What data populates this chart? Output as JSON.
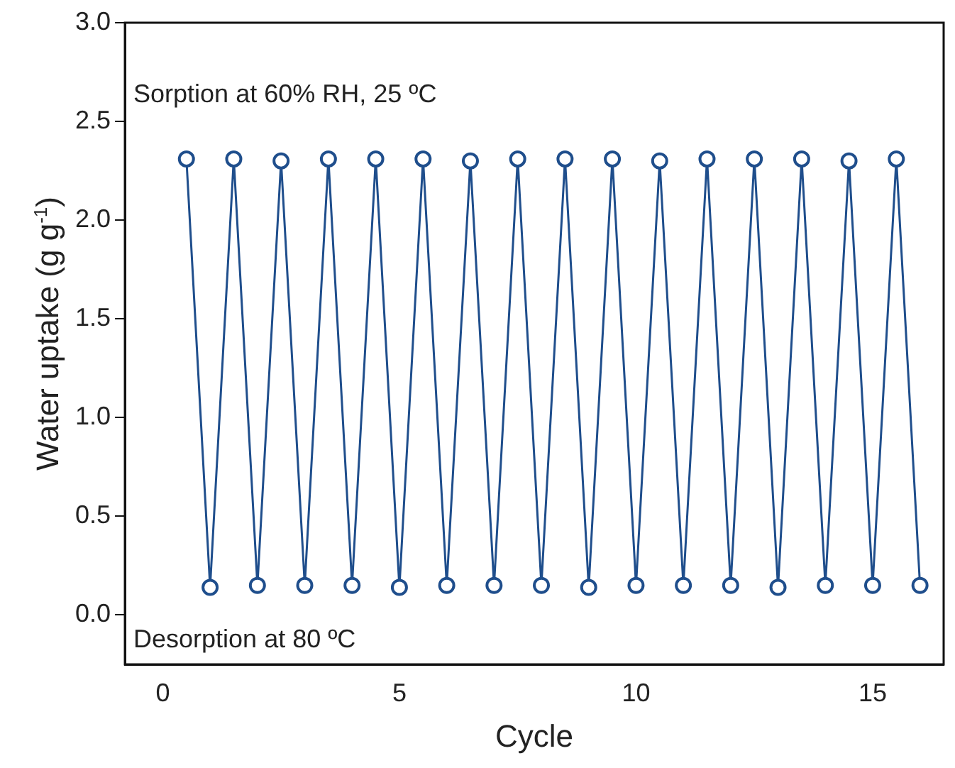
{
  "chart_data": {
    "type": "line",
    "xlabel": "Cycle",
    "ylabel": "Water uptake (g g$^{-1}$)",
    "x": [
      0.5,
      1,
      1.5,
      2,
      2.5,
      3,
      3.5,
      4,
      4.5,
      5,
      5.5,
      6,
      6.5,
      7,
      7.5,
      8,
      8.5,
      9,
      9.5,
      10,
      10.5,
      11,
      11.5,
      12,
      12.5,
      13,
      13.5,
      14,
      14.5,
      15,
      15.5,
      16
    ],
    "series": [
      {
        "color": "#1f4e8c",
        "values": [
          2.31,
          0.14,
          2.31,
          0.15,
          2.3,
          0.15,
          2.31,
          0.15,
          2.31,
          0.14,
          2.31,
          0.15,
          2.3,
          0.15,
          2.31,
          0.15,
          2.31,
          0.14,
          2.31,
          0.15,
          2.3,
          0.15,
          2.31,
          0.15,
          2.31,
          0.14,
          2.31,
          0.15,
          2.3,
          0.15,
          2.31,
          0.15
        ]
      }
    ],
    "xlim": [
      -0.8,
      16.5
    ],
    "xticks": [
      0,
      5,
      10,
      15
    ],
    "ylim": [
      -0.25,
      3.0
    ],
    "yticks": [
      {
        "value": 0,
        "label": "0.0"
      },
      {
        "value": 0.5,
        "label": "0.5"
      },
      {
        "value": 1,
        "label": "1.0"
      },
      {
        "value": 1.5,
        "label": "1.5"
      },
      {
        "value": 2,
        "label": "2.0"
      },
      {
        "value": 2.5,
        "label": "2.5"
      },
      {
        "value": 3,
        "label": "3.0"
      }
    ],
    "annotations": [
      "Sorption at 60% RH, 25 ºC",
      "Desorption at 80 ºC"
    ],
    "marker": "circle",
    "line_style": "solid",
    "grid": false,
    "legend": false
  }
}
